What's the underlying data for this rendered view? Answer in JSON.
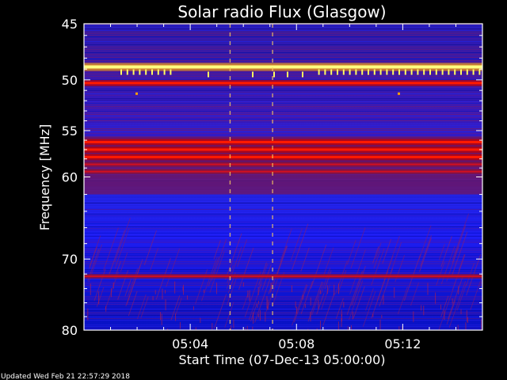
{
  "chart_data": {
    "type": "heatmap",
    "title": "Solar radio Flux (Glasgow)",
    "xlabel": "Start Time (07-Dec-13 05:00:00)",
    "ylabel": "Frequency [MHz]",
    "x_tick_labels": [
      "05:04",
      "05:08",
      "05:12"
    ],
    "x_ticks_minutes": [
      4,
      8,
      12
    ],
    "xlim_minutes": [
      0,
      15
    ],
    "y_tick_labels": [
      "45",
      "50",
      "55",
      "60",
      "70",
      "80"
    ],
    "y_ticks_mhz": [
      45,
      50,
      55,
      60,
      70,
      80
    ],
    "ylim_mhz": [
      45,
      80
    ],
    "y_scale": "log",
    "y_inverted": true,
    "colormap": [
      "#0000a8",
      "#2020ff",
      "#5a1ec8",
      "#b0103c",
      "#e00000",
      "#ffa000",
      "#ffff60"
    ],
    "bright_bands_mhz": [
      {
        "freq": 48.8,
        "level": "very-high"
      },
      {
        "freq": 50.3,
        "level": "high"
      },
      {
        "freq": 56.2,
        "level": "high"
      },
      {
        "freq": 57.0,
        "level": "high"
      },
      {
        "freq": 57.8,
        "level": "high"
      },
      {
        "freq": 58.6,
        "level": "medium"
      },
      {
        "freq": 59.4,
        "level": "medium"
      },
      {
        "freq": 72.3,
        "level": "medium"
      }
    ],
    "vertical_streaks_minutes": [
      5.5,
      7.1
    ],
    "grid": false,
    "legend": "none"
  },
  "footer": {
    "updated": "Updated Wed Feb 21 22:57:29 2018"
  }
}
